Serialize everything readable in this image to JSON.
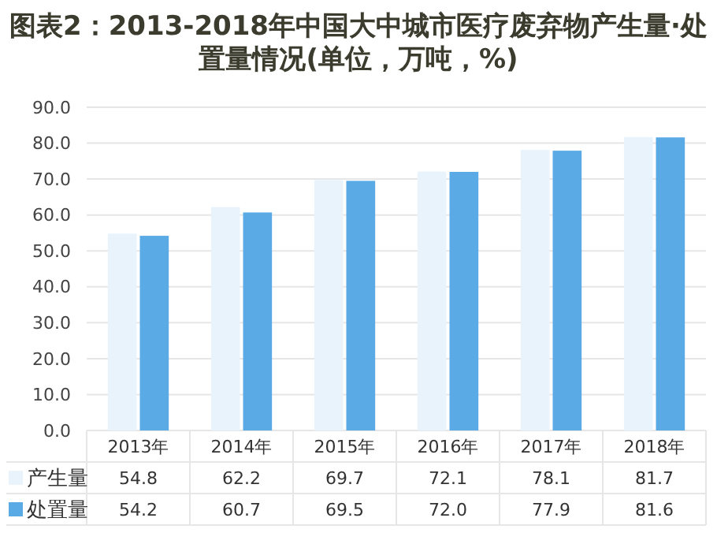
{
  "chart_data": {
    "type": "bar",
    "title": "图表2：2013-2018年中国大中城市医疗废弃物产生量·处置量情况(单位，万吨，%)",
    "categories": [
      "2013年",
      "2014年",
      "2015年",
      "2016年",
      "2017年",
      "2018年"
    ],
    "series": [
      {
        "name": "产生量",
        "color": "#e8f3fc",
        "values": [
          54.8,
          62.2,
          69.7,
          72.1,
          78.1,
          81.7
        ],
        "value_labels": [
          "54.8",
          "62.2",
          "69.7",
          "72.1",
          "78.1",
          "81.7"
        ]
      },
      {
        "name": "处置量",
        "color": "#5aaae6",
        "values": [
          54.2,
          60.7,
          69.5,
          72.0,
          77.9,
          81.6
        ],
        "value_labels": [
          "54.2",
          "60.7",
          "69.5",
          "72.0",
          "77.9",
          "81.6"
        ]
      }
    ],
    "ylim": [
      0,
      90
    ],
    "yticks": [
      {
        "value": 0,
        "label": "0.0"
      },
      {
        "value": 10,
        "label": "10.0"
      },
      {
        "value": 20,
        "label": "20.0"
      },
      {
        "value": 30,
        "label": "30.0"
      },
      {
        "value": 40,
        "label": "40.0"
      },
      {
        "value": 50,
        "label": "50.0"
      },
      {
        "value": 60,
        "label": "60.0"
      },
      {
        "value": 70,
        "label": "70.0"
      },
      {
        "value": 80,
        "label": "80.0"
      },
      {
        "value": 90,
        "label": "90.0"
      }
    ],
    "grid": "y",
    "legend": "bottom"
  }
}
